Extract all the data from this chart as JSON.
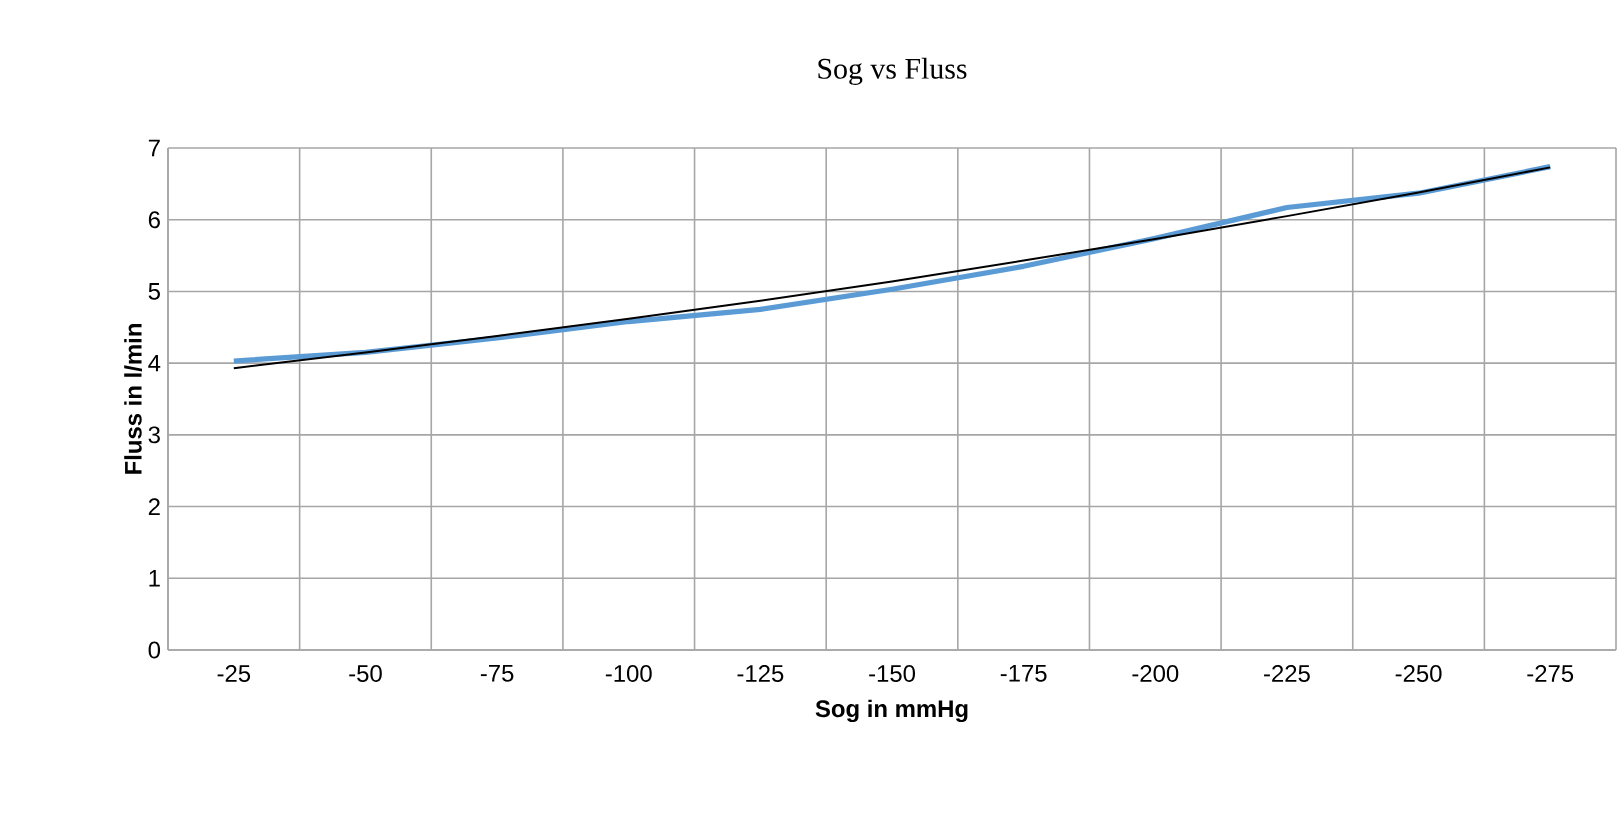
{
  "chart_data": {
    "type": "line",
    "title": "Sog vs Fluss",
    "xlabel": "Sog in mmHg",
    "ylabel": "Fluss in l/min",
    "categories": [
      "-25",
      "-50",
      "-75",
      "-100",
      "-125",
      "-150",
      "-175",
      "-200",
      "-225",
      "-250",
      "-275"
    ],
    "series": [
      {
        "color": "#5b9bd5",
        "values": [
          4.03,
          4.15,
          4.35,
          4.58,
          4.75,
          5.03,
          5.35,
          5.74,
          6.17,
          6.37,
          6.74
        ]
      },
      {
        "color": "#000000",
        "values": [
          3.93,
          4.15,
          4.38,
          4.62,
          4.87,
          5.14,
          5.43,
          5.73,
          6.05,
          6.38,
          6.73
        ]
      }
    ],
    "ylim": [
      0,
      7
    ],
    "yticks": [
      0,
      1,
      2,
      3,
      4,
      5,
      6,
      7
    ],
    "grid": true,
    "marker": "none",
    "line_style": "solid"
  }
}
